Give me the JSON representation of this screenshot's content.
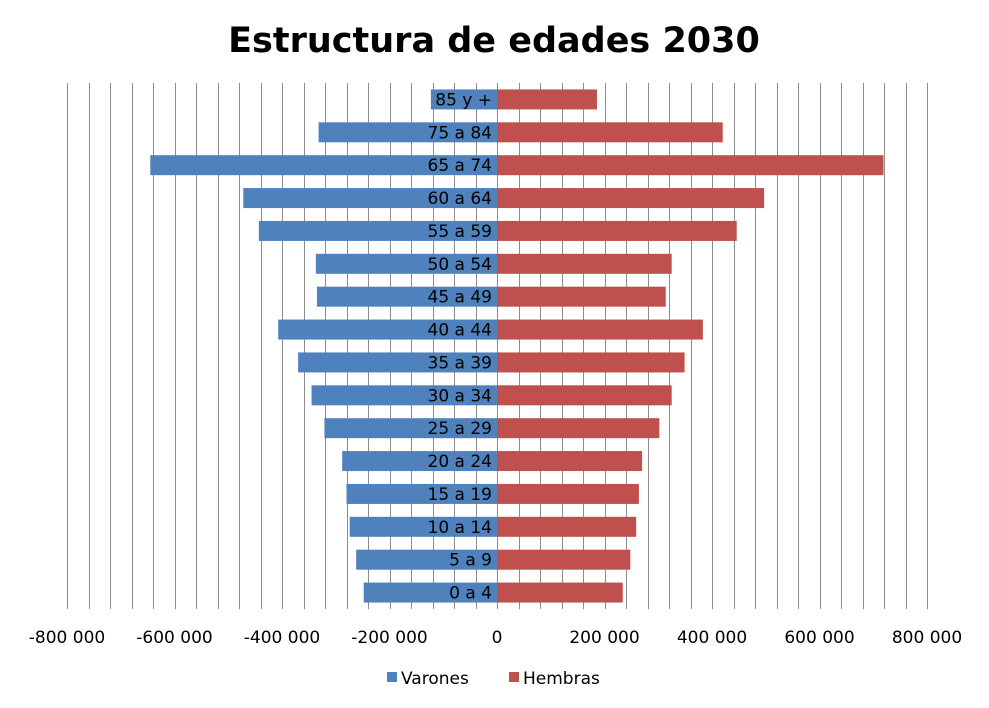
{
  "chart_data": {
    "type": "bar",
    "orientation": "horizontal",
    "title": "Estructura de edades 2030",
    "categories": [
      "0 a 4",
      "5 a 9",
      "10 a 14",
      "15 a 19",
      "20 a 24",
      "25 a 29",
      "30 a 34",
      "35 a 39",
      "40 a 44",
      "45 a 49",
      "50 a 54",
      "55 a 59",
      "60 a 64",
      "65 a 74",
      "75 a 84",
      "85 y +"
    ],
    "series": [
      {
        "name": "Varones",
        "color": "#4F81BD",
        "values": [
          -248000,
          -262000,
          -274000,
          -280000,
          -288000,
          -321000,
          -345000,
          -370000,
          -407000,
          -335000,
          -337000,
          -443000,
          -472000,
          -645000,
          -332000,
          -123000
        ]
      },
      {
        "name": "Hembras",
        "color": "#C0504D",
        "values": [
          234000,
          248000,
          259000,
          264000,
          270000,
          302000,
          325000,
          349000,
          383000,
          314000,
          325000,
          446000,
          497000,
          719000,
          420000,
          186000
        ]
      }
    ],
    "xlim": [
      -800000,
      800000
    ],
    "x_ticks": [
      -800000,
      -600000,
      -400000,
      -200000,
      0,
      200000,
      400000,
      600000,
      800000
    ],
    "x_tick_labels": [
      "-800 000",
      "-600 000",
      "-400 000",
      "-200 000",
      "0",
      "200 000",
      "400 000",
      "600 000",
      "800 000"
    ],
    "minor_grid_step": 40000,
    "grid": true,
    "legend": "bottom"
  }
}
